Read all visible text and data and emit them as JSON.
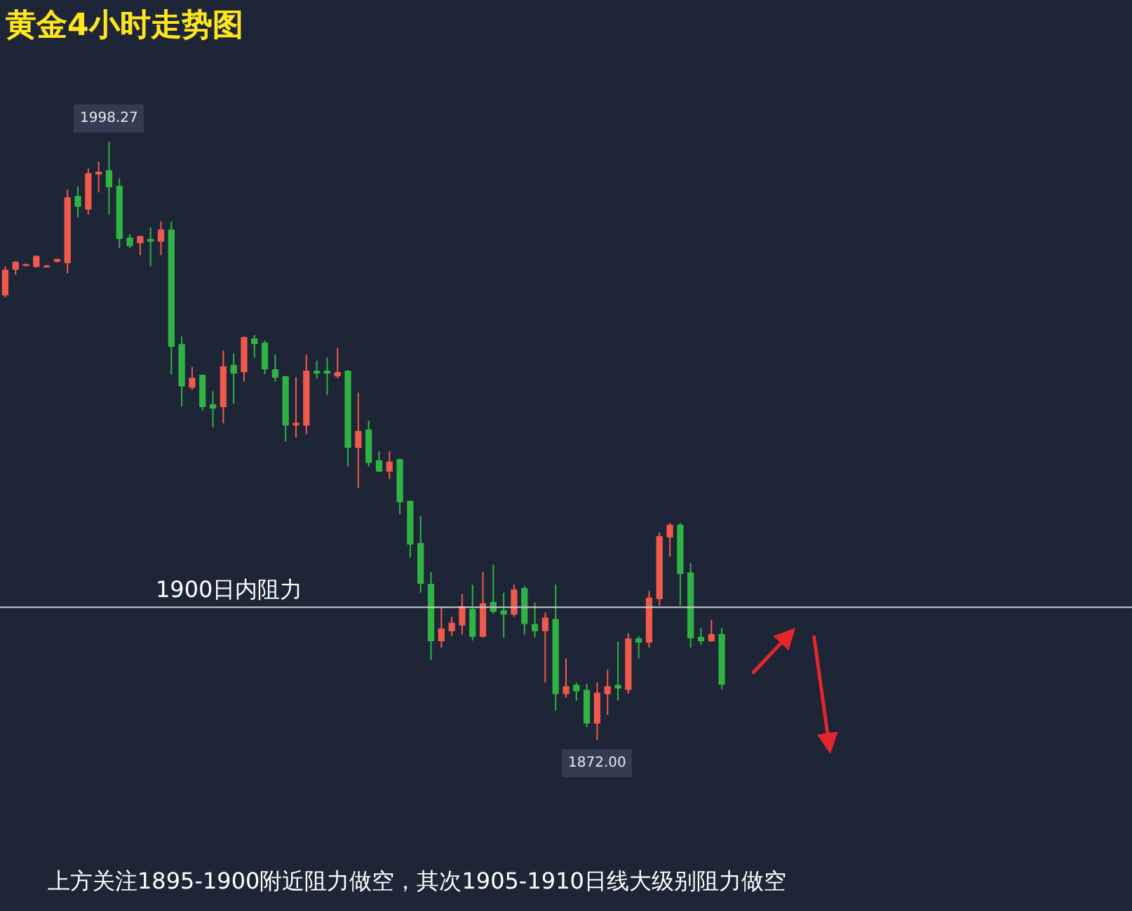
{
  "chart_data": {
    "type": "candlestick",
    "title": "黄金4小时走势图",
    "categories": [
      null,
      null,
      null,
      null,
      null,
      null,
      null,
      null,
      null,
      null,
      null,
      null,
      null,
      null,
      null,
      null,
      null,
      null,
      null,
      null,
      null,
      null,
      null,
      null,
      null,
      null,
      null,
      null,
      null,
      null,
      null,
      null,
      null,
      null,
      null,
      null,
      null,
      null,
      null,
      null,
      null,
      null,
      null,
      null,
      null,
      null,
      null,
      null,
      null,
      null,
      null,
      null,
      null,
      null,
      null,
      null,
      null,
      null,
      null,
      null,
      null,
      null,
      null,
      null,
      null,
      null,
      null,
      null,
      null,
      null
    ],
    "ohlc": [
      [
        1966.0,
        1972.0,
        1965.4,
        1971.1
      ],
      [
        1971.4,
        1973.1,
        1970.2,
        1972.8
      ],
      [
        1972.3,
        1972.5,
        1972.0,
        1972.2
      ],
      [
        1972.0,
        1974.3,
        1971.7,
        1974.0
      ],
      [
        1972.0,
        1972.3,
        1971.7,
        1971.9
      ],
      [
        1973.1,
        1973.6,
        1972.8,
        1973.4
      ],
      [
        1972.8,
        1988.2,
        1970.5,
        1986.4
      ],
      [
        1986.7,
        1988.8,
        1982.3,
        1984.7
      ],
      [
        1984.1,
        1992.7,
        1982.9,
        1991.5
      ],
      [
        1991.5,
        1994.1,
        1987.6,
        1991.8
      ],
      [
        1992.1,
        1998.27,
        1982.9,
        1988.8
      ],
      [
        1988.8,
        1990.6,
        1975.8,
        1977.9
      ],
      [
        1977.9,
        1978.8,
        1975.8,
        1976.4
      ],
      [
        1977.0,
        1978.5,
        1974.3,
        1978.2
      ],
      [
        1977.6,
        1980.2,
        1972.0,
        1977.3
      ],
      [
        1977.3,
        1981.4,
        1974.3,
        1979.6
      ],
      [
        1979.6,
        1981.4,
        1949.2,
        1955.1
      ],
      [
        1955.4,
        1957.2,
        1942.4,
        1946.8
      ],
      [
        1946.5,
        1950.7,
        1945.9,
        1948.3
      ],
      [
        1948.9,
        1949.2,
        1941.5,
        1942.4
      ],
      [
        1942.7,
        1945.6,
        1938.0,
        1942.1
      ],
      [
        1942.4,
        1954.2,
        1938.8,
        1950.7
      ],
      [
        1951.0,
        1953.6,
        1943.0,
        1949.5
      ],
      [
        1949.8,
        1957.2,
        1947.7,
        1956.9
      ],
      [
        1956.6,
        1957.5,
        1952.7,
        1955.7
      ],
      [
        1955.7,
        1956.3,
        1949.2,
        1950.4
      ],
      [
        1950.1,
        1953.3,
        1947.7,
        1948.6
      ],
      [
        1948.6,
        1948.9,
        1935.0,
        1938.5
      ],
      [
        1938.5,
        1948.6,
        1935.9,
        1938.8
      ],
      [
        1938.5,
        1953.3,
        1936.5,
        1949.8
      ],
      [
        1949.8,
        1952.1,
        1948.3,
        1949.5
      ],
      [
        1949.8,
        1952.7,
        1944.8,
        1949.5
      ],
      [
        1948.9,
        1954.8,
        1948.3,
        1949.5
      ],
      [
        1949.8,
        1950.1,
        1929.7,
        1933.8
      ],
      [
        1933.8,
        1945.3,
        1925.2,
        1937.1
      ],
      [
        1937.4,
        1939.4,
        1929.7,
        1930.6
      ],
      [
        1930.9,
        1932.9,
        1928.5,
        1928.8
      ],
      [
        1928.8,
        1932.9,
        1927.0,
        1930.6
      ],
      [
        1931.1,
        1931.4,
        1919.6,
        1922.3
      ],
      [
        1922.3,
        1922.6,
        1910.5,
        1913.4
      ],
      [
        1913.4,
        1919.3,
        1903.1,
        1905.1
      ],
      [
        1904.8,
        1907.5,
        1888.9,
        1893.0
      ],
      [
        1893.0,
        1900.1,
        1891.5,
        1895.4
      ],
      [
        1895.1,
        1898.0,
        1893.9,
        1896.6
      ],
      [
        1896.3,
        1902.8,
        1894.2,
        1900.1
      ],
      [
        1899.5,
        1904.8,
        1893.0,
        1893.9
      ],
      [
        1893.9,
        1907.5,
        1893.6,
        1900.7
      ],
      [
        1901.0,
        1909.0,
        1898.6,
        1899.2
      ],
      [
        1899.2,
        1903.1,
        1893.6,
        1898.6
      ],
      [
        1898.6,
        1904.8,
        1898.0,
        1903.6
      ],
      [
        1903.9,
        1904.5,
        1894.2,
        1896.6
      ],
      [
        1896.3,
        1901.0,
        1893.6,
        1895.1
      ],
      [
        1895.1,
        1898.9,
        1884.1,
        1897.7
      ],
      [
        1897.4,
        1904.8,
        1878.2,
        1881.8
      ],
      [
        1881.8,
        1889.2,
        1880.9,
        1883.2
      ],
      [
        1883.5,
        1884.1,
        1880.3,
        1882.4
      ],
      [
        1882.4,
        1883.8,
        1874.7,
        1875.6
      ],
      [
        1875.6,
        1884.1,
        1872.0,
        1881.8
      ],
      [
        1881.8,
        1886.8,
        1877.3,
        1883.2
      ],
      [
        1883.5,
        1892.7,
        1880.3,
        1883.0
      ],
      [
        1882.7,
        1894.5,
        1881.8,
        1893.3
      ],
      [
        1893.3,
        1893.9,
        1889.2,
        1892.7
      ],
      [
        1892.7,
        1903.4,
        1891.5,
        1901.9
      ],
      [
        1901.9,
        1915.8,
        1900.4,
        1914.9
      ],
      [
        1914.9,
        1917.8,
        1910.7,
        1917.3
      ],
      [
        1917.3,
        1917.8,
        1900.4,
        1907.2
      ],
      [
        1907.2,
        1909.3,
        1891.5,
        1893.6
      ],
      [
        1893.6,
        1895.7,
        1892.1,
        1893.0
      ],
      [
        1893.0,
        1897.4,
        1892.7,
        1894.2
      ],
      [
        1894.2,
        1895.7,
        1882.7,
        1883.8
      ]
    ],
    "colors": [
      "#ef5a4c",
      "#ef5a4c",
      "#ef5a4c",
      "#ef5a4c",
      "#ef5a4c",
      "#ef5a4c",
      "#ef5a4c",
      "#2fb344",
      "#ef5a4c",
      "#ef5a4c",
      "#2fb344",
      "#2fb344",
      "#2fb344",
      "#ef5a4c",
      "#2fb344",
      "#ef5a4c",
      "#2fb344",
      "#2fb344",
      "#ef5a4c",
      "#2fb344",
      "#2fb344",
      "#ef5a4c",
      "#2fb344",
      "#ef5a4c",
      "#2fb344",
      "#2fb344",
      "#2fb344",
      "#2fb344",
      "#ef5a4c",
      "#ef5a4c",
      "#2fb344",
      "#2fb344",
      "#ef5a4c",
      "#2fb344",
      "#ef5a4c",
      "#2fb344",
      "#2fb344",
      "#ef5a4c",
      "#2fb344",
      "#2fb344",
      "#2fb344",
      "#2fb344",
      "#ef5a4c",
      "#ef5a4c",
      "#ef5a4c",
      "#2fb344",
      "#ef5a4c",
      "#2fb344",
      "#2fb344",
      "#ef5a4c",
      "#2fb344",
      "#2fb344",
      "#ef5a4c",
      "#2fb344",
      "#ef5a4c",
      "#2fb344",
      "#2fb344",
      "#ef5a4c",
      "#ef5a4c",
      "#2fb344",
      "#ef5a4c",
      "#2fb344",
      "#ef5a4c",
      "#ef5a4c",
      "#ef5a4c",
      "#2fb344",
      "#2fb344",
      "#2fb344",
      "#ef5a4c",
      "#2fb344"
    ],
    "ref_lines": [
      {
        "axis": "y",
        "value": 1900,
        "label": "1900日内阻力",
        "color": "#c9ccd2"
      }
    ],
    "annotations": [
      {
        "text": "1998.27",
        "y": 1998.27
      },
      {
        "text": "1872.00",
        "y": 1872.0
      },
      "上方关注1895-1900附近阻力做空，其次1905-1910日线大级别阻力做空"
    ],
    "tick_labels": false,
    "grid": false,
    "legend": false
  }
}
